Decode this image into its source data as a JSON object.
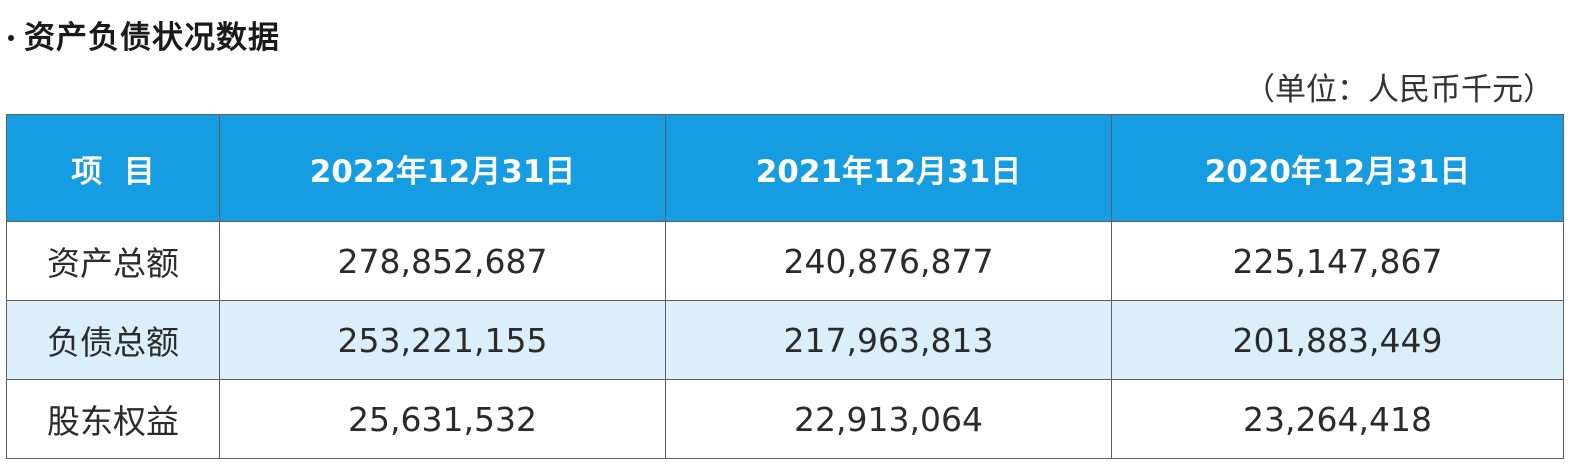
{
  "section": {
    "title": "资产负债状况数据",
    "unit_note": "（单位：人民币千元）"
  },
  "table": {
    "headers": [
      "项  目",
      "2022年12月31日",
      "2021年12月31日",
      "2020年12月31日"
    ],
    "rows": [
      {
        "label": "资产总额",
        "values": [
          "278,852,687",
          "240,876,877",
          "225,147,867"
        ]
      },
      {
        "label": "负债总额",
        "values": [
          "253,221,155",
          "217,963,813",
          "201,883,449"
        ]
      },
      {
        "label": "股东权益",
        "values": [
          "25,631,532",
          "22,913,064",
          "23,264,418"
        ]
      }
    ]
  },
  "colors": {
    "header_bg": "#169ce0",
    "header_text": "#ffffff",
    "shaded_row_bg": "#dbeffa",
    "border": "#5f5f5f"
  }
}
